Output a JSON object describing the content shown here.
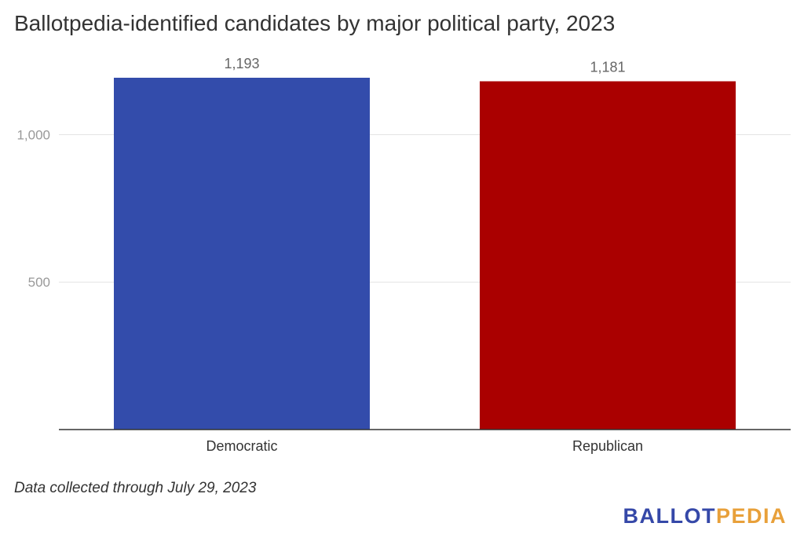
{
  "title": "Ballotpedia-identified candidates by major political party, 2023",
  "footnote": "Data collected through July 29, 2023",
  "logo": {
    "part1": "BALLOT",
    "part2": "PEDIA"
  },
  "chart_data": {
    "type": "bar",
    "title": "Ballotpedia-identified candidates by major political party, 2023",
    "categories": [
      "Democratic",
      "Republican"
    ],
    "values": [
      1193,
      1181
    ],
    "value_labels": [
      "1,193",
      "1,181"
    ],
    "colors": [
      "#334cab",
      "#aa0000"
    ],
    "yticks": [
      500,
      1000
    ],
    "ytick_labels": [
      "500",
      "1,000"
    ],
    "ylim": [
      0,
      1193
    ],
    "xlabel": "",
    "ylabel": "",
    "grid": true,
    "legend": "none"
  }
}
